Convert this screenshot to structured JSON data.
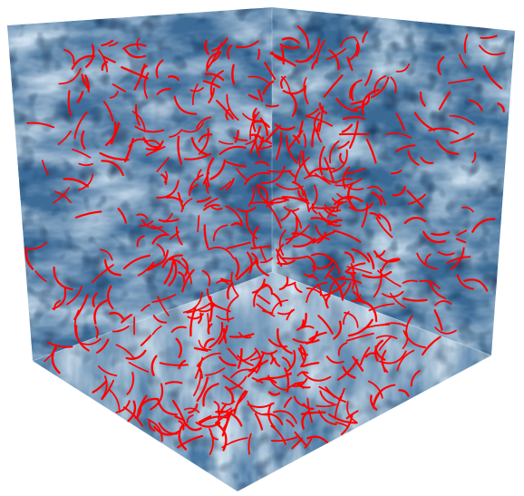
{
  "figure": {
    "description_visible_text": "",
    "colors": {
      "background": "#ffffff",
      "field_dark": "#173c66",
      "field_mid": "#3f6f9b",
      "field_light": "#cfe0ee",
      "filaments": "#ff0000"
    },
    "faces": [
      "left-wall",
      "right-wall",
      "floor"
    ],
    "filament_style": "red curved line segments distributed throughout the volume"
  }
}
